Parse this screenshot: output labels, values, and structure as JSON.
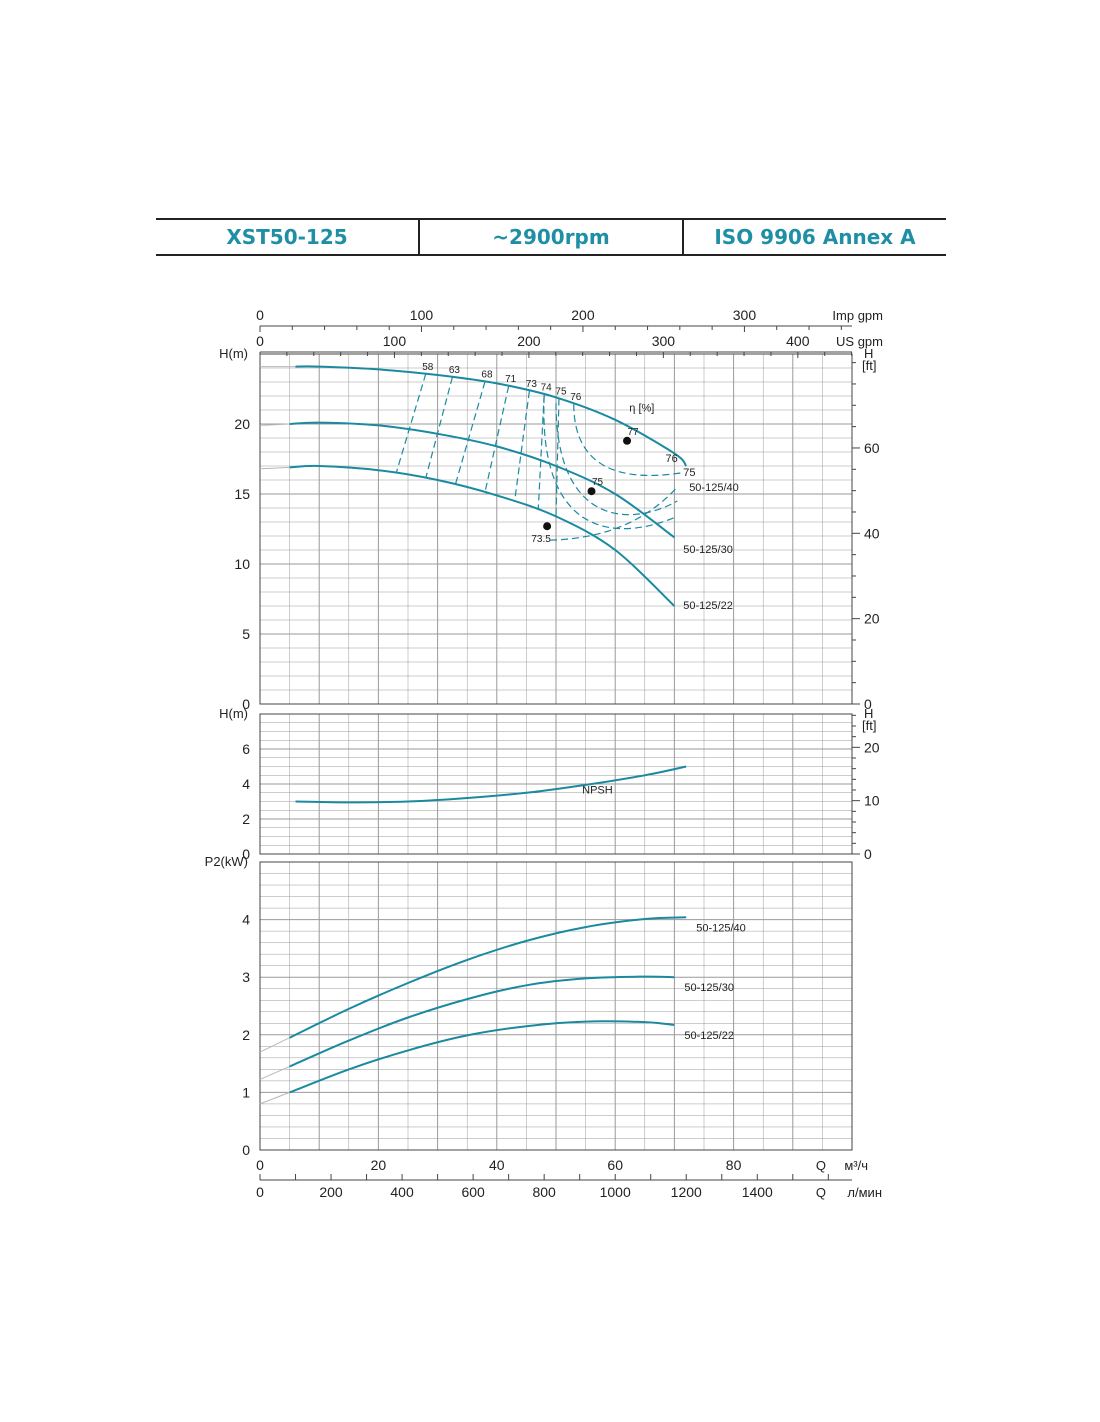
{
  "header": {
    "model": "XST50-125",
    "speed": "~2900rpm",
    "standard": "ISO 9906   Annex A"
  },
  "colors": {
    "curve": "#1a8aa1",
    "grid": "#9a9a9a",
    "text": "#222222"
  },
  "chart_data": [
    {
      "type": "line",
      "id": "head",
      "x_axis_label": "",
      "ylabel_left": "H(m)",
      "ylabel_right": "H\n[ft]",
      "xlim": [
        0,
        100
      ],
      "ylim": [
        0,
        25
      ],
      "yticks_left": [
        0,
        5,
        10,
        15,
        20
      ],
      "yticks_right_ft": [
        0,
        20,
        40,
        60
      ],
      "efficiency_label": "η [%]",
      "series": [
        {
          "name": "50-125/40",
          "x": [
            6,
            10,
            20,
            30,
            40,
            50,
            60,
            70,
            72
          ],
          "y": [
            24.1,
            24.1,
            23.9,
            23.5,
            22.9,
            21.9,
            20.3,
            17.9,
            17.0
          ]
        },
        {
          "name": "50-125/30",
          "x": [
            5,
            10,
            20,
            30,
            40,
            50,
            60,
            70
          ],
          "y": [
            20.0,
            20.1,
            19.9,
            19.3,
            18.4,
            17.0,
            15.0,
            11.9
          ]
        },
        {
          "name": "50-125/22",
          "x": [
            5,
            10,
            20,
            30,
            40,
            50,
            60,
            70
          ],
          "y": [
            16.9,
            17.0,
            16.7,
            16.0,
            14.9,
            13.4,
            11.0,
            7.0
          ]
        }
      ],
      "efficiency_points": [
        {
          "label": "77",
          "x": 62.0,
          "y": 18.8
        },
        {
          "label": "75",
          "x": 56.0,
          "y": 15.2
        },
        {
          "label": "73.5",
          "x": 48.5,
          "y": 12.7
        }
      ],
      "efficiency_contours": [
        {
          "label": "58",
          "x_top": 28,
          "x_bottom": 23
        },
        {
          "label": "63",
          "x_top": 32.5,
          "x_bottom": 28
        },
        {
          "label": "68",
          "x_top": 38,
          "x_bottom": 33
        },
        {
          "label": "71",
          "x_top": 42,
          "x_bottom": 38
        },
        {
          "label": "73",
          "x_top": 45.5,
          "x_bottom": 43
        },
        {
          "label": "74",
          "x_top": 48,
          "x_bottom": 47
        },
        {
          "label": "75",
          "x_top": 50.5,
          "x_bottom": 50
        },
        {
          "label": "76",
          "x_top": 53,
          "x_bottom": 54
        }
      ],
      "right_labels": [
        {
          "label": "76",
          "x": 68.5,
          "y": 17.3
        },
        {
          "label": "75",
          "x": 71.5,
          "y": 16.3
        },
        {
          "label": "50-125/40",
          "x": 72.5,
          "y": 15.2
        },
        {
          "label": "50-125/30",
          "x": 71.5,
          "y": 10.8
        },
        {
          "label": "50-125/22",
          "x": 71.5,
          "y": 6.8
        }
      ]
    },
    {
      "type": "line",
      "id": "npsh",
      "ylabel_left": "H(m)",
      "ylabel_right": "H\n[ft]",
      "ylim": [
        0,
        8
      ],
      "yticks_left": [
        0,
        2,
        4,
        6
      ],
      "yticks_right_ft": [
        0,
        10,
        20
      ],
      "series": [
        {
          "name": "NPSH",
          "x": [
            6,
            15,
            25,
            35,
            45,
            55,
            65,
            72
          ],
          "y": [
            3.0,
            2.95,
            3.0,
            3.2,
            3.5,
            3.95,
            4.5,
            5.0
          ]
        }
      ]
    },
    {
      "type": "line",
      "id": "power",
      "ylabel_left": "P2(kW)",
      "ylim": [
        0,
        5
      ],
      "yticks_left": [
        0,
        1,
        2,
        3,
        4
      ],
      "series": [
        {
          "name": "50-125/40",
          "x": [
            5,
            15,
            25,
            35,
            45,
            55,
            65,
            72
          ],
          "y": [
            1.95,
            2.45,
            2.9,
            3.3,
            3.63,
            3.87,
            4.01,
            4.04
          ]
        },
        {
          "name": "50-125/30",
          "x": [
            5,
            15,
            25,
            35,
            45,
            55,
            65,
            70
          ],
          "y": [
            1.45,
            1.9,
            2.3,
            2.62,
            2.86,
            2.98,
            3.01,
            3.0
          ]
        },
        {
          "name": "50-125/22",
          "x": [
            5,
            15,
            25,
            35,
            45,
            55,
            65,
            70
          ],
          "y": [
            1.0,
            1.4,
            1.73,
            1.99,
            2.15,
            2.23,
            2.22,
            2.17
          ]
        }
      ]
    }
  ],
  "x_axes": {
    "imp_gpm": {
      "label": "Imp gpm",
      "ticks": [
        0,
        100,
        200,
        300
      ]
    },
    "us_gpm": {
      "label": "US gpm",
      "ticks": [
        0,
        100,
        200,
        300,
        400
      ]
    },
    "m3h": {
      "label_q": "Q",
      "label_unit": "м³/ч",
      "ticks": [
        0,
        20,
        40,
        60,
        80
      ]
    },
    "lmin": {
      "label_q": "Q",
      "label_unit": "л/мин",
      "ticks": [
        0,
        200,
        400,
        600,
        800,
        1000,
        1200,
        1400
      ]
    }
  }
}
